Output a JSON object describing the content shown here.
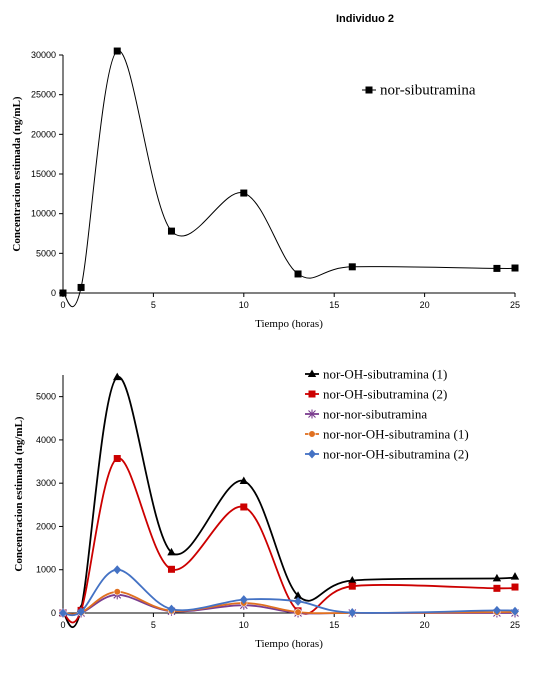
{
  "figure": {
    "title": "Individuo 2"
  },
  "chart_data": [
    {
      "type": "line",
      "xlabel": "Tiempo (horas)",
      "ylabel": "Concentracion estimada (ng/mL)",
      "xlim": [
        0,
        25
      ],
      "ylim": [
        0,
        30000
      ],
      "xticks": [
        0,
        5,
        10,
        15,
        20,
        25
      ],
      "yticks": [
        0,
        5000,
        10000,
        15000,
        20000,
        25000,
        30000
      ],
      "legend_position": "top-right",
      "series": [
        {
          "name": "nor-sibutramina",
          "color": "#000000",
          "marker": "square",
          "x": [
            0,
            1,
            3,
            6,
            10,
            13,
            16,
            24,
            25
          ],
          "values": [
            0,
            700,
            30500,
            7800,
            12600,
            2400,
            3300,
            3100,
            3150
          ]
        }
      ]
    },
    {
      "type": "line",
      "xlabel": "Tiempo (horas)",
      "ylabel": "Concentracion estimada (ng/mL)",
      "xlim": [
        0,
        25
      ],
      "ylim": [
        0,
        5500
      ],
      "xticks": [
        0,
        5,
        10,
        15,
        20,
        25
      ],
      "yticks": [
        0,
        1000,
        2000,
        3000,
        4000,
        5000
      ],
      "legend_position": "top-right",
      "series": [
        {
          "name": "nor-OH-sibutramina (1)",
          "color": "#000000",
          "marker": "triangle",
          "x": [
            0,
            1,
            3,
            6,
            10,
            13,
            16,
            24,
            25
          ],
          "values": [
            0,
            100,
            5450,
            1400,
            3050,
            400,
            750,
            800,
            840
          ]
        },
        {
          "name": "nor-OH-sibutramina (2)",
          "color": "#cc0000",
          "marker": "square",
          "x": [
            0,
            1,
            3,
            6,
            10,
            13,
            16,
            24,
            25
          ],
          "values": [
            0,
            60,
            3570,
            1010,
            2450,
            50,
            620,
            570,
            600
          ]
        },
        {
          "name": "nor-nor-sibutramina",
          "color": "#7a3d8f",
          "marker": "star",
          "x": [
            0,
            1,
            3,
            6,
            10,
            13,
            16,
            24,
            25
          ],
          "values": [
            0,
            0,
            420,
            40,
            180,
            0,
            0,
            0,
            0
          ]
        },
        {
          "name": "nor-nor-OH-sibutramina (1)",
          "color": "#e07020",
          "marker": "circle",
          "x": [
            0,
            1,
            3,
            6,
            10,
            13,
            16,
            24,
            25
          ],
          "values": [
            0,
            10,
            490,
            50,
            230,
            20,
            0,
            20,
            30
          ]
        },
        {
          "name": "nor-nor-OH-sibutramina (2)",
          "color": "#4472c4",
          "marker": "diamond",
          "x": [
            0,
            1,
            3,
            6,
            10,
            13,
            16,
            24,
            25
          ],
          "values": [
            0,
            30,
            1000,
            90,
            310,
            270,
            10,
            60,
            40
          ]
        }
      ]
    }
  ]
}
